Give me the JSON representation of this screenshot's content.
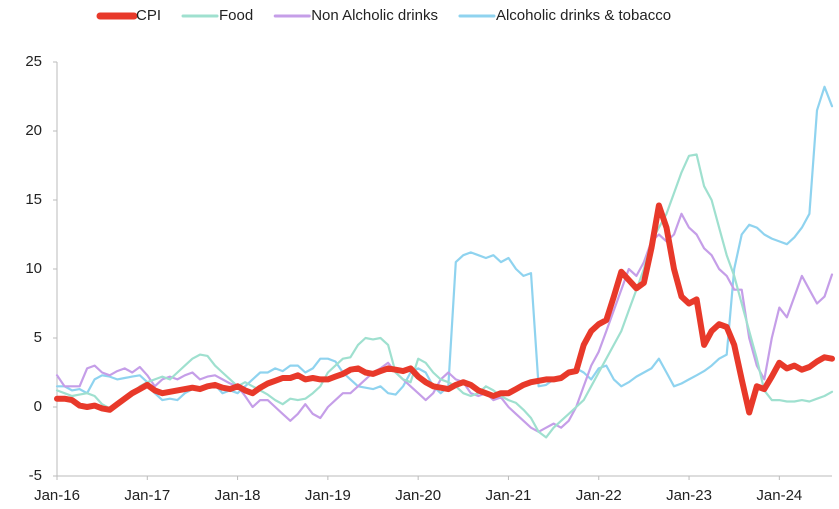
{
  "chart_data": {
    "type": "line",
    "categories": [
      "Jan-16",
      null,
      null,
      null,
      null,
      null,
      null,
      null,
      null,
      null,
      null,
      null,
      "Jan-17",
      null,
      null,
      null,
      null,
      null,
      null,
      null,
      null,
      null,
      null,
      null,
      "Jan-18",
      null,
      null,
      null,
      null,
      null,
      null,
      null,
      null,
      null,
      null,
      null,
      "Jan-19",
      null,
      null,
      null,
      null,
      null,
      null,
      null,
      null,
      null,
      null,
      null,
      "Jan-20",
      null,
      null,
      null,
      null,
      null,
      null,
      null,
      null,
      null,
      null,
      null,
      "Jan-21",
      null,
      null,
      null,
      null,
      null,
      null,
      null,
      null,
      null,
      null,
      null,
      "Jan-22",
      null,
      null,
      null,
      null,
      null,
      null,
      null,
      null,
      null,
      null,
      null,
      "Jan-23",
      null,
      null,
      null,
      null,
      null,
      null,
      null,
      null,
      null,
      null,
      null,
      "Jan-24",
      null,
      null,
      null,
      null,
      null,
      null,
      null
    ],
    "series": [
      {
        "name": "CPI",
        "color": "#e8392a",
        "values": [
          0.6,
          0.6,
          0.5,
          0.1,
          0.0,
          0.1,
          -0.1,
          -0.2,
          0.2,
          0.6,
          1.0,
          1.3,
          1.6,
          1.2,
          1.0,
          1.1,
          1.2,
          1.3,
          1.4,
          1.3,
          1.5,
          1.6,
          1.4,
          1.3,
          1.5,
          1.2,
          1.0,
          1.4,
          1.7,
          1.9,
          2.1,
          2.1,
          2.3,
          2.0,
          2.1,
          2.0,
          2.0,
          2.2,
          2.4,
          2.7,
          2.8,
          2.5,
          2.4,
          2.6,
          2.8,
          2.7,
          2.6,
          2.8,
          2.2,
          1.8,
          1.5,
          1.4,
          1.3,
          1.6,
          1.8,
          1.6,
          1.2,
          1.0,
          0.8,
          1.0,
          1.0,
          1.3,
          1.6,
          1.8,
          1.9,
          2.0,
          2.0,
          2.1,
          2.5,
          2.6,
          4.5,
          5.5,
          6.0,
          6.3,
          8.0,
          9.8,
          9.2,
          8.6,
          9.0,
          11.5,
          14.6,
          13.0,
          10.0,
          8.0,
          7.5,
          7.8,
          4.5,
          5.5,
          6.0,
          5.8,
          4.5,
          2.0,
          -0.4,
          1.5,
          1.3,
          2.2,
          3.2,
          2.8,
          3.0,
          2.7,
          2.9,
          3.3,
          3.6,
          3.5
        ]
      },
      {
        "name": "Food",
        "color": "#9fe0cf",
        "values": [
          1.2,
          1.0,
          0.8,
          0.9,
          1.0,
          0.8,
          0.2,
          -0.1,
          0.1,
          0.5,
          1.0,
          1.5,
          1.8,
          2.0,
          2.2,
          2.0,
          2.5,
          3.0,
          3.5,
          3.8,
          3.7,
          3.0,
          2.5,
          2.0,
          1.5,
          1.8,
          1.5,
          1.2,
          0.9,
          0.5,
          0.2,
          0.6,
          0.5,
          0.6,
          1.0,
          1.5,
          2.5,
          3.0,
          3.5,
          3.6,
          4.5,
          5.0,
          4.9,
          5.0,
          4.5,
          2.5,
          2.0,
          1.8,
          3.5,
          3.2,
          2.5,
          2.0,
          1.8,
          1.5,
          1.0,
          0.8,
          1.0,
          1.5,
          1.2,
          0.8,
          0.5,
          0.3,
          -0.2,
          -0.8,
          -1.8,
          -2.2,
          -1.5,
          -1.0,
          -0.5,
          0.0,
          0.5,
          1.5,
          2.5,
          3.5,
          4.5,
          5.5,
          7.0,
          8.5,
          10.0,
          12.0,
          13.0,
          14.0,
          15.5,
          17.0,
          18.2,
          18.3,
          16.0,
          15.0,
          13.0,
          11.0,
          9.5,
          7.5,
          5.5,
          3.5,
          1.2,
          0.5,
          0.5,
          0.4,
          0.4,
          0.5,
          0.4,
          0.6,
          0.8,
          1.1
        ]
      },
      {
        "name": "Non Alcholic drinks",
        "color": "#c59ee8",
        "values": [
          2.3,
          1.5,
          1.5,
          1.5,
          2.8,
          3.0,
          2.5,
          2.3,
          2.6,
          2.8,
          2.5,
          2.9,
          2.3,
          1.5,
          2.0,
          2.2,
          2.0,
          2.3,
          2.5,
          2.0,
          2.2,
          2.3,
          2.0,
          1.7,
          1.5,
          0.8,
          0.0,
          0.5,
          0.5,
          0.0,
          -0.5,
          -1.0,
          -0.5,
          0.2,
          -0.5,
          -0.8,
          0.0,
          0.5,
          1.0,
          1.0,
          1.5,
          2.0,
          2.5,
          2.8,
          3.2,
          2.5,
          2.0,
          1.5,
          1.0,
          0.5,
          1.0,
          2.0,
          2.5,
          2.0,
          1.8,
          1.0,
          0.8,
          1.0,
          0.5,
          0.7,
          0.0,
          -0.5,
          -1.0,
          -1.5,
          -1.8,
          -1.5,
          -1.2,
          -1.5,
          -1.0,
          0.0,
          1.5,
          3.0,
          4.0,
          5.5,
          7.0,
          8.5,
          10.0,
          9.5,
          10.5,
          12.0,
          12.5,
          12.0,
          12.5,
          14.0,
          13.0,
          12.5,
          11.5,
          11.0,
          10.0,
          9.5,
          8.5,
          8.5,
          5.0,
          3.0,
          2.0,
          5.0,
          7.2,
          6.5,
          8.0,
          9.5,
          8.5,
          7.5,
          8.0,
          9.6
        ]
      },
      {
        "name": "Alcoholic drinks & tobacco",
        "color": "#8fd3ef",
        "values": [
          1.5,
          1.5,
          1.2,
          1.3,
          1.0,
          2.0,
          2.3,
          2.2,
          2.0,
          2.1,
          2.2,
          2.3,
          1.8,
          1.0,
          0.5,
          0.6,
          0.5,
          1.0,
          1.3,
          1.2,
          1.5,
          1.6,
          1.0,
          1.2,
          1.0,
          1.5,
          2.0,
          2.5,
          2.5,
          2.8,
          2.6,
          3.0,
          3.0,
          2.5,
          2.8,
          3.5,
          3.5,
          3.3,
          2.5,
          2.0,
          1.5,
          1.4,
          1.3,
          1.5,
          1.0,
          0.9,
          1.5,
          2.5,
          2.8,
          2.5,
          1.5,
          1.0,
          1.5,
          10.5,
          11.0,
          11.2,
          11.0,
          10.8,
          11.0,
          10.5,
          10.8,
          10.0,
          9.5,
          9.7,
          1.5,
          1.6,
          2.0,
          2.2,
          2.5,
          2.8,
          2.5,
          2.0,
          2.8,
          3.0,
          2.0,
          1.5,
          1.8,
          2.2,
          2.5,
          2.8,
          3.5,
          2.5,
          1.5,
          1.7,
          2.0,
          2.3,
          2.6,
          3.0,
          3.5,
          3.8,
          10.0,
          12.5,
          13.2,
          13.0,
          12.5,
          12.2,
          12.0,
          11.8,
          12.3,
          13.0,
          14.0,
          21.5,
          23.2,
          21.8
        ]
      }
    ],
    "ylim": [
      -5,
      25
    ],
    "yticks": [
      -5,
      0,
      5,
      10,
      15,
      20,
      25
    ],
    "grid": false
  }
}
